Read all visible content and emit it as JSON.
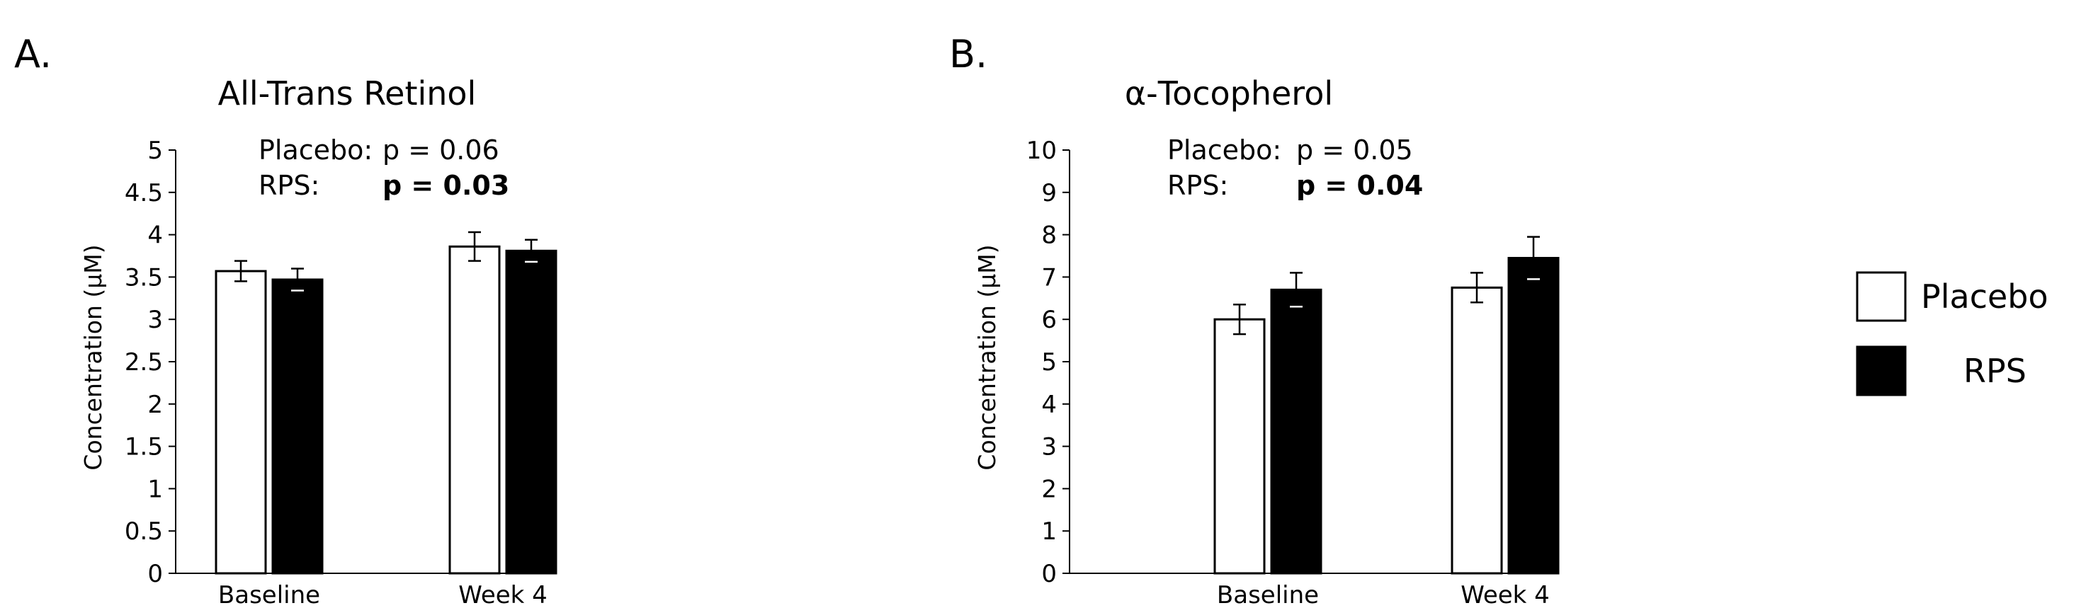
{
  "panels": [
    {
      "letter": "A."
    },
    {
      "letter": "B."
    }
  ],
  "legend": {
    "items": [
      {
        "label": "Placebo",
        "fill": "#ffffff"
      },
      {
        "label": "RPS",
        "fill": "#000000"
      }
    ]
  },
  "chart_data": [
    {
      "type": "bar",
      "title": "All-Trans Retinol",
      "ylabel": "Concentration (μM)",
      "xlabel": "",
      "categories": [
        "Baseline",
        "Week 4"
      ],
      "ylim": [
        0,
        5
      ],
      "yticks": [
        "0",
        "0.5",
        "1",
        "1.5",
        "2",
        "2.5",
        "3",
        "3.5",
        "4",
        "4.5",
        "5"
      ],
      "series": [
        {
          "name": "Placebo",
          "color": "#ffffff",
          "values": [
            3.57,
            3.86
          ],
          "errors": [
            0.12,
            0.17
          ]
        },
        {
          "name": "RPS",
          "color": "#000000",
          "values": [
            3.47,
            3.81
          ],
          "errors": [
            0.13,
            0.13
          ]
        }
      ],
      "annotations": [
        {
          "label": "Placebo:",
          "stat": "p = 0.06",
          "bold": false
        },
        {
          "label": "RPS:",
          "stat": "p = 0.03",
          "bold": true
        }
      ],
      "grid": false
    },
    {
      "type": "bar",
      "title": "α-Tocopherol",
      "ylabel": "Concentration (μM)",
      "xlabel": "",
      "categories": [
        "Baseline",
        "Week 4"
      ],
      "ylim": [
        0,
        10
      ],
      "yticks": [
        "0",
        "1",
        "2",
        "3",
        "4",
        "5",
        "6",
        "7",
        "8",
        "9",
        "10"
      ],
      "series": [
        {
          "name": "Placebo",
          "color": "#ffffff",
          "values": [
            6.0,
            6.75
          ],
          "errors": [
            0.35,
            0.35
          ]
        },
        {
          "name": "RPS",
          "color": "#000000",
          "values": [
            6.7,
            7.45
          ],
          "errors": [
            0.4,
            0.5
          ]
        }
      ],
      "annotations": [
        {
          "label": "Placebo:",
          "stat": "p = 0.05",
          "bold": false
        },
        {
          "label": "RPS:",
          "stat": "p = 0.04",
          "bold": true
        }
      ],
      "grid": false
    }
  ]
}
